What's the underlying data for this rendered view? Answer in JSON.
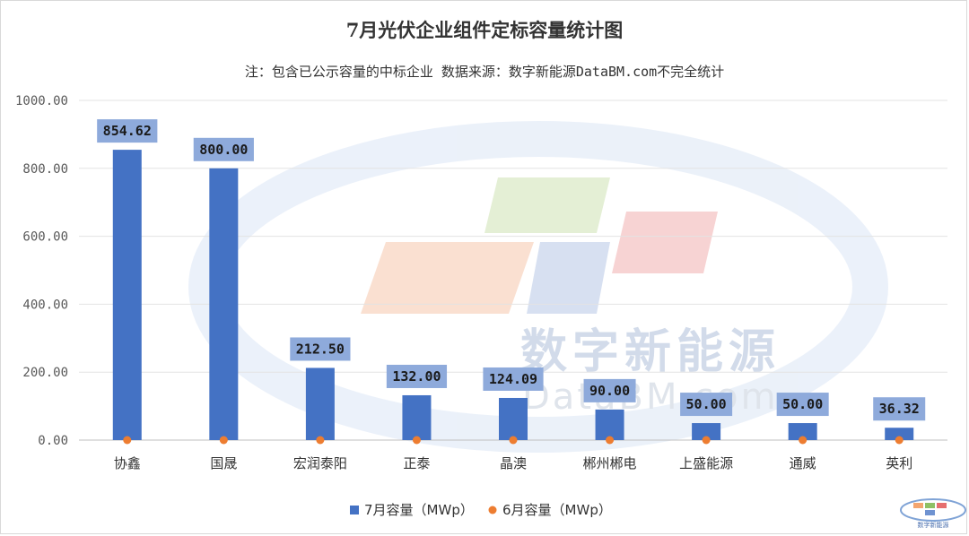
{
  "chart_data": {
    "type": "bar",
    "title": "7月光伏企业组件定标容量统计图",
    "subtitle": "注：包含已公示容量的中标企业 数据来源：数字新能源DataBM.com不完全统计",
    "categories": [
      "协鑫",
      "国晟",
      "宏润泰阳",
      "正泰",
      "晶澳",
      "郴州郴电",
      "上盛能源",
      "通威",
      "英利"
    ],
    "series": [
      {
        "name": "7月容量（MWp）",
        "type": "bar",
        "color": "#4472c4",
        "values": [
          854.62,
          800.0,
          212.5,
          132.0,
          124.09,
          90.0,
          50.0,
          50.0,
          36.32
        ],
        "labels": [
          "854.62",
          "800.00",
          "212.50",
          "132.00",
          "124.09",
          "90.00",
          "50.00",
          "50.00",
          "36.32"
        ]
      },
      {
        "name": "6月容量（MWp）",
        "type": "scatter",
        "color": "#ed7d31",
        "values": [
          0,
          0,
          0,
          0,
          0,
          0,
          0,
          0,
          0
        ]
      }
    ],
    "ylim": [
      0,
      1000
    ],
    "yticks": [
      "0.00",
      "200.00",
      "400.00",
      "600.00",
      "800.00",
      "1000.00"
    ],
    "grid": true,
    "legend_position": "bottom",
    "data_label_bg": "#8eaadb"
  },
  "watermark": {
    "text_cn": "数字新能源",
    "text_en": "DataBM.com",
    "logo_caption": "数字新能源"
  }
}
